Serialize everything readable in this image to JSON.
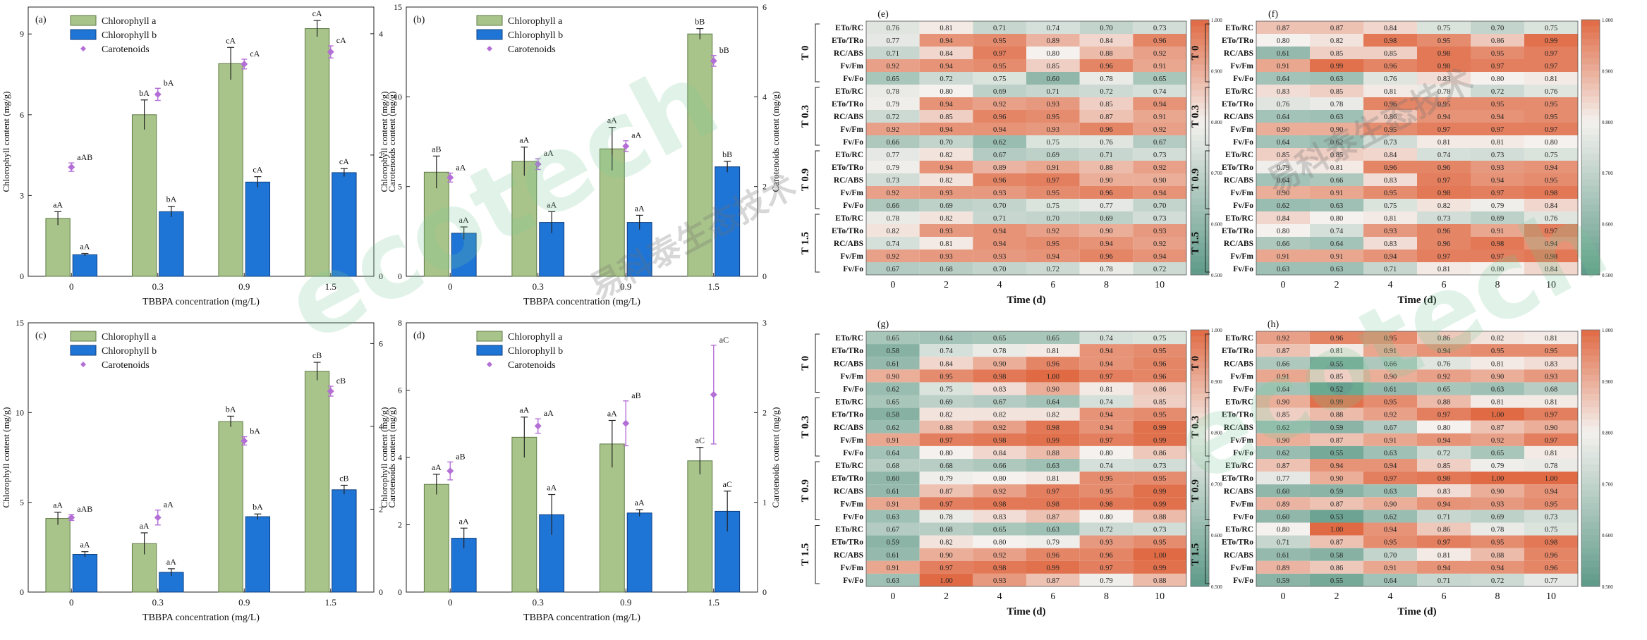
{
  "watermark": {
    "brand": "ecotech",
    "cn": "易科泰生态技术"
  },
  "colors": {
    "chl_a": "#a9c48a",
    "chl_a_edge": "#5e7a45",
    "chl_b": "#1f75d6",
    "chl_b_edge": "#0d3f80",
    "carotenoid": "#b46fd6",
    "hm_low": "#5e9a88",
    "hm_mid": "#f4f1ee",
    "hm_high": "#e06a44"
  },
  "chart_data": [
    {
      "type": "bar",
      "panel": "(a)",
      "categories": [
        "0",
        "0.3",
        "0.9",
        "1.5"
      ],
      "xlabel": "TBBPA concentration (mg/L)",
      "ylabel": "Chlorophyll content (mg/g)",
      "ylim": [
        0,
        10
      ],
      "yticks": [
        "0",
        "3",
        "6",
        "9"
      ],
      "ylabel2": "Carotenoids content (mg/g)",
      "ylim2": [
        0,
        4.44
      ],
      "yticks2": [
        "0",
        "2",
        "4"
      ],
      "series": [
        {
          "name": "Chlorophyll a",
          "values": [
            2.15,
            6.0,
            7.9,
            9.2
          ],
          "err": [
            0.25,
            0.55,
            0.6,
            0.3
          ],
          "labels": [
            "aA",
            "bA",
            "cA",
            "cA"
          ]
        },
        {
          "name": "Chlorophyll b",
          "values": [
            0.8,
            2.4,
            3.5,
            3.85
          ],
          "err": [
            0.05,
            0.2,
            0.2,
            0.15
          ],
          "labels": [
            "aA",
            "bA",
            "cA",
            "cA"
          ]
        },
        {
          "name": "Carotenoids",
          "values": [
            1.8,
            3.0,
            3.5,
            3.7
          ],
          "err": [
            0.07,
            0.1,
            0.08,
            0.1
          ],
          "labels": [
            "aAB",
            "bA",
            "cA",
            "cA"
          ]
        }
      ]
    },
    {
      "type": "bar",
      "panel": "(b)",
      "categories": [
        "0",
        "0.3",
        "0.9",
        "1.5"
      ],
      "xlabel": "TBBPA concentration (mg/L)",
      "ylabel": "Chlorophyll content (mg/g)",
      "ylim": [
        0,
        15
      ],
      "yticks": [
        "0",
        "5",
        "10",
        "15"
      ],
      "ylabel2": "Carotenoids content (mg/g)",
      "ylim2": [
        0,
        6
      ],
      "yticks2": [
        "0",
        "2",
        "4",
        "6"
      ],
      "series": [
        {
          "name": "Chlorophyll a",
          "values": [
            5.8,
            6.4,
            7.1,
            13.5
          ],
          "err": [
            0.9,
            0.8,
            1.2,
            0.3
          ],
          "labels": [
            "aB",
            "aA",
            "aA",
            "bB"
          ]
        },
        {
          "name": "Chlorophyll b",
          "values": [
            2.4,
            3.0,
            3.0,
            6.1
          ],
          "err": [
            0.35,
            0.6,
            0.4,
            0.3
          ],
          "labels": [
            "aA",
            "aA",
            "aA",
            "bB"
          ]
        },
        {
          "name": "Carotenoids",
          "values": [
            2.2,
            2.5,
            2.9,
            4.8
          ],
          "err": [
            0.1,
            0.12,
            0.12,
            0.12
          ],
          "labels": [
            "aA",
            "aA",
            "aA",
            "bB"
          ]
        }
      ]
    },
    {
      "type": "bar",
      "panel": "(c)",
      "categories": [
        "0",
        "0.3",
        "0.9",
        "1.5"
      ],
      "xlabel": "TBBPA concentration (mg/L)",
      "ylabel": "Chlorophyll content (mg/g)",
      "ylim": [
        0,
        15
      ],
      "yticks": [
        "0",
        "5",
        "10",
        "15"
      ],
      "ylabel2": "Carotenoids content (mg/g)",
      "ylim2": [
        0,
        6.5
      ],
      "yticks2": [
        "0",
        "2",
        "4",
        "6"
      ],
      "series": [
        {
          "name": "Chlorophyll a",
          "values": [
            4.1,
            2.7,
            9.5,
            12.3
          ],
          "err": [
            0.35,
            0.6,
            0.3,
            0.5
          ],
          "labels": [
            "aA",
            "aA",
            "bA",
            "cB"
          ]
        },
        {
          "name": "Chlorophyll b",
          "values": [
            2.1,
            1.1,
            4.2,
            5.7
          ],
          "err": [
            0.15,
            0.2,
            0.15,
            0.25
          ],
          "labels": [
            "aA",
            "aA",
            "bA",
            "cB"
          ]
        },
        {
          "name": "Carotenoids",
          "values": [
            1.8,
            1.8,
            3.65,
            4.85
          ],
          "err": [
            0.07,
            0.18,
            0.1,
            0.12
          ],
          "labels": [
            "aAB",
            "aA",
            "bA",
            "cB"
          ]
        }
      ]
    },
    {
      "type": "bar",
      "panel": "(d)",
      "categories": [
        "0",
        "0.3",
        "0.9",
        "1.5"
      ],
      "xlabel": "TBBPA concentration (mg/L)",
      "ylabel": "Chlorophyll content (mg/g)",
      "ylim": [
        0,
        8
      ],
      "yticks": [
        "0",
        "2",
        "4",
        "6",
        "8"
      ],
      "ylabel2": "Carotenoids content (mg/g)",
      "ylim2": [
        0,
        3
      ],
      "yticks2": [
        "0",
        "1",
        "2",
        "3"
      ],
      "series": [
        {
          "name": "Chlorophyll a",
          "values": [
            3.2,
            4.6,
            4.4,
            3.9
          ],
          "err": [
            0.3,
            0.6,
            0.7,
            0.4
          ],
          "labels": [
            "aA",
            "aA",
            "aA",
            "aC"
          ]
        },
        {
          "name": "Chlorophyll b",
          "values": [
            1.6,
            2.3,
            2.35,
            2.4
          ],
          "err": [
            0.3,
            0.6,
            0.1,
            0.6
          ],
          "labels": [
            "aA",
            "aA",
            "aA",
            "aC"
          ]
        },
        {
          "name": "Carotenoids",
          "values": [
            1.35,
            1.85,
            1.88,
            2.2
          ],
          "err": [
            0.1,
            0.08,
            0.25,
            0.55
          ],
          "labels": [
            "aB",
            "aA",
            "aB",
            "aC"
          ]
        }
      ]
    },
    {
      "type": "heatmap",
      "panel": "(e)",
      "xlabel": "Time (d)",
      "x": [
        "0",
        "2",
        "4",
        "6",
        "8",
        "10"
      ],
      "row_labels": [
        "ETo/RC",
        "ETo/TRo",
        "RC/ABS",
        "Fv/Fm",
        "Fv/Fo"
      ],
      "groups": [
        "T 0",
        "T 0.3",
        "T 0.9",
        "T 1.5"
      ],
      "colorbar": {
        "range": [
          0.5,
          1.0
        ],
        "ticks": [
          "0.500",
          "0.600",
          "0.700",
          "0.800",
          "0.900",
          "1.000"
        ]
      },
      "values": [
        [
          "0.76",
          "0.81",
          "0.71",
          "0.74",
          "0.70",
          "0.73"
        ],
        [
          "0.77",
          "0.94",
          "0.95",
          "0.89",
          "0.84",
          "0.96"
        ],
        [
          "0.71",
          "0.84",
          "0.97",
          "0.80",
          "0.88",
          "0.92"
        ],
        [
          "0.92",
          "0.94",
          "0.95",
          "0.85",
          "0.96",
          "0.91"
        ],
        [
          "0.65",
          "0.72",
          "0.75",
          "0.60",
          "0.78",
          "0.65"
        ],
        [
          "0.78",
          "0.80",
          "0.69",
          "0.71",
          "0.72",
          "0.74"
        ],
        [
          "0.79",
          "0.94",
          "0.92",
          "0.93",
          "0.85",
          "0.94"
        ],
        [
          "0.72",
          "0.85",
          "0.96",
          "0.95",
          "0.87",
          "0.91"
        ],
        [
          "0.92",
          "0.94",
          "0.94",
          "0.93",
          "0.96",
          "0.92"
        ],
        [
          "0.66",
          "0.70",
          "0.62",
          "0.75",
          "0.76",
          "0.67"
        ],
        [
          "0.77",
          "0.82",
          "0.67",
          "0.69",
          "0.71",
          "0.73"
        ],
        [
          "0.79",
          "0.94",
          "0.89",
          "0.91",
          "0.88",
          "0.92"
        ],
        [
          "0.73",
          "0.82",
          "0.96",
          "0.97",
          "0.90",
          "0.90"
        ],
        [
          "0.92",
          "0.93",
          "0.93",
          "0.95",
          "0.96",
          "0.94"
        ],
        [
          "0.66",
          "0.69",
          "0.70",
          "0.75",
          "0.77",
          "0.70"
        ],
        [
          "0.78",
          "0.82",
          "0.71",
          "0.70",
          "0.69",
          "0.73"
        ],
        [
          "0.82",
          "0.93",
          "0.94",
          "0.92",
          "0.90",
          "0.93"
        ],
        [
          "0.74",
          "0.81",
          "0.94",
          "0.95",
          "0.94",
          "0.92"
        ],
        [
          "0.92",
          "0.93",
          "0.93",
          "0.94",
          "0.96",
          "0.94"
        ],
        [
          "0.67",
          "0.68",
          "0.70",
          "0.72",
          "0.78",
          "0.72"
        ]
      ]
    },
    {
      "type": "heatmap",
      "panel": "(f)",
      "xlabel": "Time (d)",
      "x": [
        "0",
        "2",
        "4",
        "6",
        "8",
        "10"
      ],
      "row_labels": [
        "ETo/RC",
        "ETo/TRo",
        "RC/ABS",
        "Fv/Fm",
        "Fv/Fo"
      ],
      "groups": [
        "T 0",
        "T 0.3",
        "T 0.9",
        "T 1.5"
      ],
      "colorbar": {
        "range": [
          0.5,
          1.0
        ],
        "ticks": [
          "0.500",
          "0.600",
          "0.700",
          "0.800",
          "0.900",
          "1.000"
        ]
      },
      "values": [
        [
          "0.87",
          "0.87",
          "0.84",
          "0.75",
          "0.70",
          "0.75"
        ],
        [
          "0.80",
          "0.82",
          "0.98",
          "0.95",
          "0.86",
          "0.99"
        ],
        [
          "0.61",
          "0.85",
          "0.85",
          "0.98",
          "0.95",
          "0.97"
        ],
        [
          "0.91",
          "0.99",
          "0.96",
          "0.98",
          "0.97",
          "0.97"
        ],
        [
          "0.64",
          "0.63",
          "0.76",
          "0.83",
          "0.80",
          "0.81"
        ],
        [
          "0.83",
          "0.85",
          "0.81",
          "0.78",
          "0.72",
          "0.76"
        ],
        [
          "0.76",
          "0.78",
          "0.96",
          "0.95",
          "0.95",
          "0.95"
        ],
        [
          "0.64",
          "0.63",
          "0.86",
          "0.94",
          "0.94",
          "0.95"
        ],
        [
          "0.90",
          "0.90",
          "0.95",
          "0.97",
          "0.97",
          "0.97"
        ],
        [
          "0.64",
          "0.62",
          "0.73",
          "0.81",
          "0.81",
          "0.80"
        ],
        [
          "0.85",
          "0.85",
          "0.84",
          "0.74",
          "0.73",
          "0.75"
        ],
        [
          "0.79",
          "0.81",
          "0.96",
          "0.96",
          "0.93",
          "0.94"
        ],
        [
          "0.64",
          "0.66",
          "0.83",
          "0.97",
          "0.94",
          "0.95"
        ],
        [
          "0.90",
          "0.91",
          "0.95",
          "0.98",
          "0.97",
          "0.98"
        ],
        [
          "0.62",
          "0.63",
          "0.75",
          "0.82",
          "0.79",
          "0.84"
        ],
        [
          "0.84",
          "0.80",
          "0.81",
          "0.73",
          "0.69",
          "0.76"
        ],
        [
          "0.80",
          "0.74",
          "0.93",
          "0.96",
          "0.91",
          "0.97"
        ],
        [
          "0.66",
          "0.64",
          "0.83",
          "0.96",
          "0.98",
          "0.94"
        ],
        [
          "0.91",
          "0.91",
          "0.94",
          "0.97",
          "0.97",
          "0.98"
        ],
        [
          "0.63",
          "0.63",
          "0.71",
          "0.81",
          "0.80",
          "0.84"
        ]
      ]
    },
    {
      "type": "heatmap",
      "panel": "(g)",
      "xlabel": "Time (d)",
      "x": [
        "0",
        "2",
        "4",
        "6",
        "8",
        "10"
      ],
      "row_labels": [
        "ETo/RC",
        "ETo/TRo",
        "RC/ABS",
        "Fv/Fm",
        "Fv/Fo"
      ],
      "groups": [
        "T 0",
        "T 0.3",
        "T 0.9",
        "T 1.5"
      ],
      "colorbar": {
        "range": [
          0.5,
          1.0
        ],
        "ticks": [
          "0.500",
          "0.600",
          "0.700",
          "0.800",
          "0.900",
          "1.000"
        ]
      },
      "values": [
        [
          "0.65",
          "0.64",
          "0.65",
          "0.65",
          "0.74",
          "0.75"
        ],
        [
          "0.58",
          "0.74",
          "0.78",
          "0.81",
          "0.94",
          "0.95"
        ],
        [
          "0.61",
          "0.84",
          "0.90",
          "0.96",
          "0.94",
          "0.96"
        ],
        [
          "0.90",
          "0.95",
          "0.98",
          "1.00",
          "0.97",
          "0.96"
        ],
        [
          "0.62",
          "0.75",
          "0.83",
          "0.90",
          "0.81",
          "0.86"
        ],
        [
          "0.65",
          "0.69",
          "0.67",
          "0.64",
          "0.74",
          "0.85"
        ],
        [
          "0.58",
          "0.82",
          "0.82",
          "0.82",
          "0.94",
          "0.95"
        ],
        [
          "0.62",
          "0.88",
          "0.92",
          "0.98",
          "0.94",
          "0.99"
        ],
        [
          "0.91",
          "0.97",
          "0.98",
          "0.99",
          "0.97",
          "0.99"
        ],
        [
          "0.64",
          "0.80",
          "0.84",
          "0.88",
          "0.80",
          "0.86"
        ],
        [
          "0.68",
          "0.68",
          "0.66",
          "0.63",
          "0.74",
          "0.73"
        ],
        [
          "0.60",
          "0.79",
          "0.80",
          "0.81",
          "0.95",
          "0.95"
        ],
        [
          "0.61",
          "0.87",
          "0.92",
          "0.97",
          "0.95",
          "0.99"
        ],
        [
          "0.91",
          "0.97",
          "0.98",
          "0.98",
          "0.98",
          "0.99"
        ],
        [
          "0.63",
          "0.78",
          "0.83",
          "0.87",
          "0.80",
          "0.88"
        ],
        [
          "0.67",
          "0.68",
          "0.65",
          "0.63",
          "0.72",
          "0.73"
        ],
        [
          "0.59",
          "0.82",
          "0.80",
          "0.79",
          "0.93",
          "0.95"
        ],
        [
          "0.61",
          "0.90",
          "0.92",
          "0.96",
          "0.96",
          "1.00"
        ],
        [
          "0.91",
          "0.97",
          "0.98",
          "0.99",
          "0.97",
          "0.99"
        ],
        [
          "0.63",
          "1.00",
          "0.93",
          "0.87",
          "0.79",
          "0.88"
        ]
      ]
    },
    {
      "type": "heatmap",
      "panel": "(h)",
      "xlabel": "Time (d)",
      "x": [
        "0",
        "2",
        "4",
        "6",
        "8",
        "10"
      ],
      "row_labels": [
        "ETo/RC",
        "ETo/TRo",
        "RC/ABS",
        "Fv/Fm",
        "Fv/Fo"
      ],
      "groups": [
        "T 0",
        "T 0.3",
        "T 0.9",
        "T 1.5"
      ],
      "colorbar": {
        "range": [
          0.5,
          1.0
        ],
        "ticks": [
          "0.500",
          "0.600",
          "0.700",
          "0.800",
          "0.900",
          "1.000"
        ]
      },
      "values": [
        [
          "0.92",
          "0.96",
          "0.95",
          "0.86",
          "0.82",
          "0.81"
        ],
        [
          "0.87",
          "0.81",
          "0.91",
          "0.94",
          "0.95",
          "0.95"
        ],
        [
          "0.66",
          "0.55",
          "0.66",
          "0.76",
          "0.81",
          "0.83"
        ],
        [
          "0.91",
          "0.85",
          "0.90",
          "0.92",
          "0.90",
          "0.93"
        ],
        [
          "0.64",
          "0.52",
          "0.61",
          "0.65",
          "0.63",
          "0.68"
        ],
        [
          "0.90",
          "0.99",
          "0.95",
          "0.88",
          "0.81",
          "0.81"
        ],
        [
          "0.85",
          "0.88",
          "0.92",
          "0.97",
          "1.00",
          "0.97"
        ],
        [
          "0.62",
          "0.59",
          "0.67",
          "0.80",
          "0.87",
          "0.90"
        ],
        [
          "0.90",
          "0.87",
          "0.91",
          "0.94",
          "0.92",
          "0.97"
        ],
        [
          "0.62",
          "0.55",
          "0.63",
          "0.72",
          "0.65",
          "0.81"
        ],
        [
          "0.87",
          "0.94",
          "0.94",
          "0.85",
          "0.79",
          "0.78"
        ],
        [
          "0.77",
          "0.90",
          "0.97",
          "0.98",
          "1.00",
          "1.00"
        ],
        [
          "0.60",
          "0.59",
          "0.63",
          "0.83",
          "0.90",
          "0.94"
        ],
        [
          "0.89",
          "0.87",
          "0.90",
          "0.94",
          "0.93",
          "0.95"
        ],
        [
          "0.60",
          "0.53",
          "0.62",
          "0.71",
          "0.69",
          "0.73"
        ],
        [
          "0.80",
          "1.00",
          "0.94",
          "0.86",
          "0.78",
          "0.75"
        ],
        [
          "0.71",
          "0.87",
          "0.95",
          "0.97",
          "0.95",
          "0.98"
        ],
        [
          "0.61",
          "0.58",
          "0.70",
          "0.81",
          "0.88",
          "0.96"
        ],
        [
          "0.89",
          "0.86",
          "0.91",
          "0.94",
          "0.94",
          "0.96"
        ],
        [
          "0.59",
          "0.55",
          "0.64",
          "0.71",
          "0.72",
          "0.77"
        ]
      ]
    }
  ]
}
